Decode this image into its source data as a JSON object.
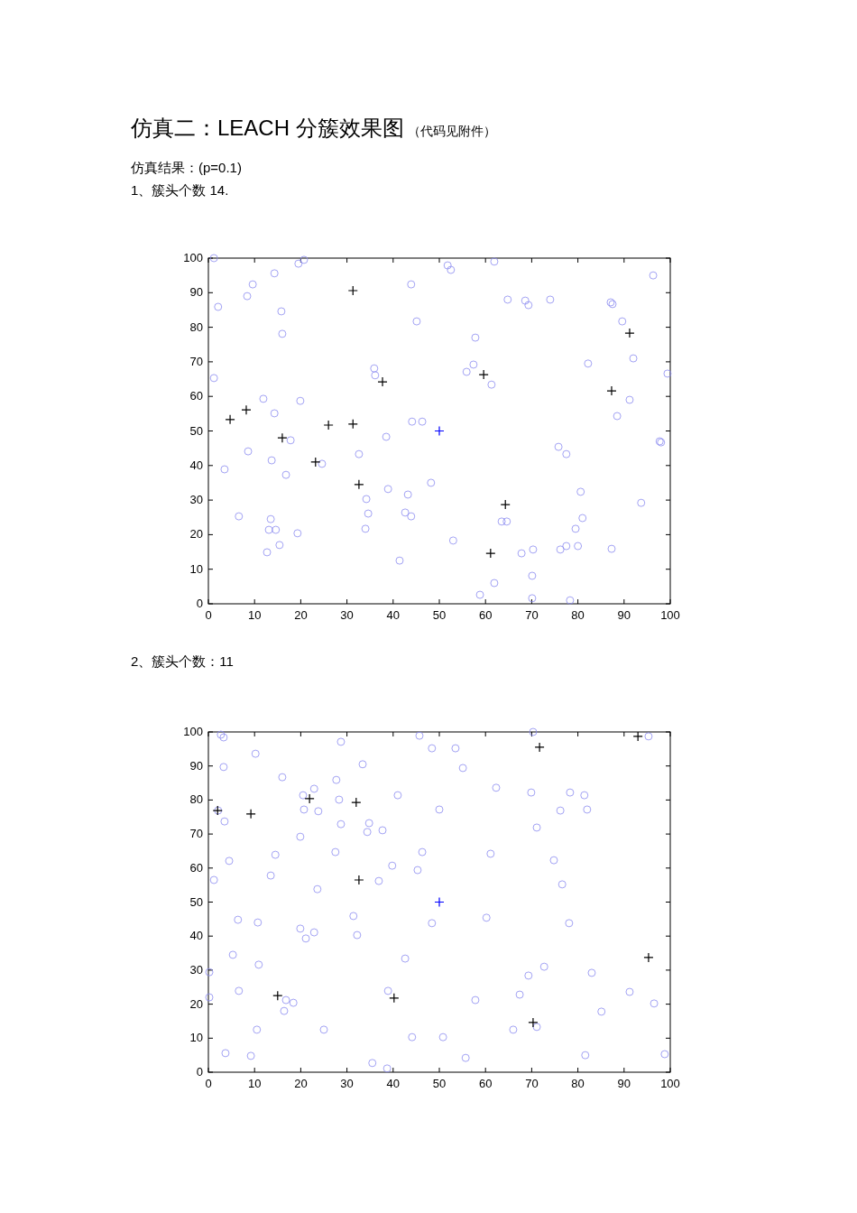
{
  "chart_data": [
    {
      "type": "scatter",
      "title": "仿真二：LEACH 分簇效果图",
      "subtitle": "（代码见附件）",
      "annotations": [
        "仿真结果：(p=0.1)",
        "1、簇头个数 14."
      ],
      "xlim": [
        0,
        100
      ],
      "ylim": [
        0,
        100
      ],
      "xticks": [
        0,
        10,
        20,
        30,
        40,
        50,
        60,
        70,
        80,
        90,
        100
      ],
      "yticks": [
        0,
        10,
        20,
        30,
        40,
        50,
        60,
        70,
        80,
        90,
        100
      ],
      "grid": false,
      "series": [
        {
          "color": "#8c8cf0",
          "marker": "circle",
          "x": [
            1.2,
            2.1,
            1.2,
            3.5,
            6.6,
            8.6,
            8.4,
            9.6,
            11.9,
            14.3,
            15.8,
            16.0,
            14.3,
            13.7,
            17.8,
            16.8,
            13.5,
            13.1,
            14.6,
            12.7,
            15.4,
            19.3,
            19.5,
            20.7,
            19.9,
            24.6,
            35.9,
            36.1,
            32.6,
            34.2,
            34.6,
            34.0,
            38.5,
            38.9,
            43.9,
            45.1,
            44.1,
            46.3,
            43.2,
            42.6,
            43.9,
            48.2,
            41.4,
            51.8,
            52.5,
            61.9,
            57.8,
            57.4,
            55.9,
            61.3,
            53.0,
            63.5,
            64.6,
            61.9,
            58.8,
            64.8,
            68.6,
            69.3,
            74.0,
            67.8,
            70.3,
            70.1,
            70.1,
            75.8,
            77.5,
            76.2,
            77.5,
            78.3,
            79.5,
            81.0,
            80.6,
            80.0,
            82.2,
            87.1,
            87.5,
            89.6,
            92.0,
            91.2,
            88.5,
            87.3,
            93.7,
            96.3,
            99.4,
            97.7,
            98.0
          ],
          "values": [
            100,
            85.9,
            65.3,
            38.9,
            25.3,
            44.1,
            89.0,
            92.4,
            59.3,
            95.6,
            84.6,
            78.1,
            55.1,
            41.5,
            47.3,
            37.3,
            24.5,
            21.4,
            21.4,
            14.9,
            17.0,
            20.4,
            98.4,
            99.5,
            58.7,
            40.5,
            68.1,
            66.1,
            43.3,
            30.3,
            26.1,
            21.7,
            48.3,
            33.2,
            92.4,
            81.7,
            52.7,
            52.7,
            31.6,
            26.4,
            25.3,
            35.0,
            12.5,
            97.9,
            96.6,
            99.0,
            77.0,
            69.2,
            67.1,
            63.4,
            18.3,
            23.8,
            23.8,
            6.0,
            2.6,
            88.0,
            87.7,
            86.4,
            88.0,
            14.6,
            15.7,
            8.1,
            1.6,
            45.4,
            43.3,
            15.7,
            16.7,
            1.0,
            21.7,
            24.8,
            32.4,
            16.7,
            69.5,
            87.2,
            86.7,
            81.7,
            71.0,
            59.0,
            54.3,
            15.9,
            29.2,
            95.0,
            66.6,
            47.0,
            46.7
          ]
        },
        {
          "color": "#000000",
          "marker": "cross",
          "x": [
            31.3,
            4.7,
            8.2,
            16.0,
            26.0,
            31.3,
            23.2,
            32.6,
            37.7,
            59.6,
            64.3,
            61.1,
            87.3,
            91.2
          ],
          "values": [
            90.6,
            53.3,
            56.1,
            48.0,
            51.7,
            52.0,
            41.0,
            34.5,
            64.2,
            66.3,
            28.7,
            14.6,
            61.6,
            78.3
          ]
        },
        {
          "color": "#0000ff",
          "marker": "cross",
          "x": [
            50
          ],
          "values": [
            50
          ]
        }
      ]
    },
    {
      "type": "scatter",
      "title": "2、簇头个数：11",
      "xlim": [
        0,
        100
      ],
      "ylim": [
        0,
        100
      ],
      "xticks": [
        0,
        10,
        20,
        30,
        40,
        50,
        60,
        70,
        80,
        90,
        100
      ],
      "yticks": [
        0,
        10,
        20,
        30,
        40,
        50,
        60,
        70,
        80,
        90,
        100
      ],
      "grid": false,
      "series": [
        {
          "color": "#8c8cf0",
          "marker": "circle",
          "x": [
            2.7,
            3.3,
            3.3,
            10.2,
            2.1,
            3.5,
            4.5,
            1.2,
            6.4,
            5.3,
            0.2,
            0.2,
            6.6,
            3.7,
            9.2,
            10.5,
            10.7,
            10.9,
            16.0,
            14.5,
            13.5,
            16.8,
            16.4,
            18.4,
            20.5,
            20.7,
            19.9,
            22.9,
            23.8,
            23.6,
            19.9,
            21.1,
            22.9,
            25.0,
            28.7,
            27.7,
            28.3,
            28.7,
            27.5,
            33.4,
            34.8,
            34.4,
            37.7,
            31.4,
            32.2,
            36.9,
            39.8,
            41.0,
            45.7,
            48.4,
            46.3,
            45.3,
            48.4,
            42.6,
            38.9,
            44.1,
            35.5,
            38.7,
            50.0,
            53.5,
            55.1,
            50.8,
            57.8,
            55.7,
            62.3,
            61.1,
            60.2,
            70.3,
            69.9,
            71.1,
            67.4,
            69.3,
            72.7,
            66.0,
            71.1,
            74.8,
            76.6,
            76.2,
            78.3,
            78.1,
            81.4,
            82.0,
            83.0,
            81.6,
            85.1,
            91.2,
            95.3,
            96.5,
            98.8
          ],
          "values": [
            99.2,
            98.4,
            89.7,
            93.6,
            76.9,
            73.7,
            62.1,
            56.5,
            44.8,
            34.5,
            29.4,
            22.0,
            23.9,
            5.6,
            4.8,
            12.5,
            44.0,
            31.6,
            86.7,
            63.9,
            57.8,
            21.2,
            18.0,
            20.4,
            81.4,
            77.2,
            69.2,
            83.3,
            76.7,
            53.8,
            42.2,
            39.3,
            41.1,
            12.5,
            97.1,
            85.9,
            80.1,
            72.9,
            64.7,
            90.5,
            73.2,
            70.6,
            71.1,
            45.9,
            40.3,
            56.2,
            60.7,
            81.4,
            98.9,
            95.2,
            64.7,
            59.4,
            43.8,
            33.4,
            23.9,
            10.3,
            2.7,
            1.1,
            77.2,
            95.2,
            89.4,
            10.3,
            21.2,
            4.2,
            83.6,
            64.2,
            45.4,
            100,
            82.2,
            71.9,
            22.8,
            28.4,
            31.0,
            12.5,
            13.3,
            62.3,
            55.2,
            76.9,
            82.2,
            43.8,
            81.4,
            77.2,
            29.2,
            5.0,
            17.8,
            23.6,
            98.7,
            20.2,
            5.3
          ]
        },
        {
          "color": "#000000",
          "marker": "cross",
          "x": [
            2.0,
            9.2,
            21.9,
            32.0,
            71.7,
            93.0,
            32.6,
            15.0,
            40.2,
            95.3,
            70.3
          ],
          "values": [
            76.9,
            75.9,
            80.4,
            79.3,
            95.5,
            98.7,
            56.5,
            22.5,
            21.8,
            33.7,
            14.6
          ]
        },
        {
          "color": "#0000ff",
          "marker": "cross",
          "x": [
            50
          ],
          "values": [
            50
          ]
        }
      ]
    }
  ]
}
